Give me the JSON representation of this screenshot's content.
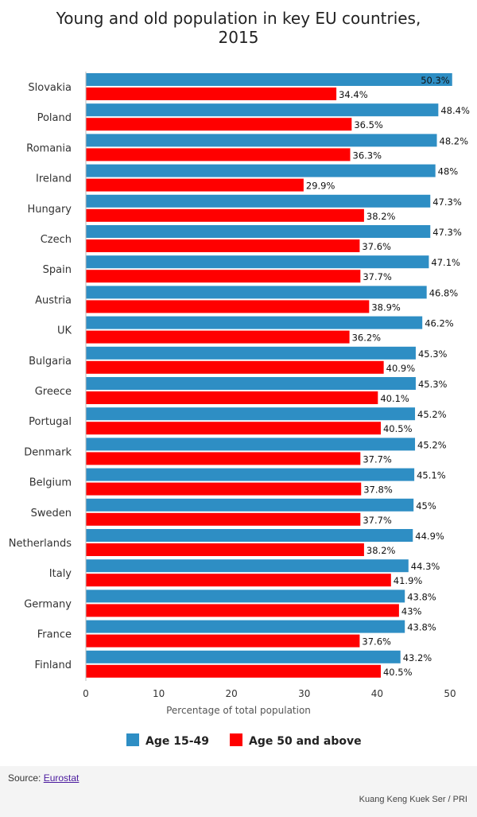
{
  "chart_data": {
    "type": "bar",
    "orientation": "horizontal",
    "title": "Young and old population in key EU countries, 2015",
    "title_lines": [
      "Young and old population in key EU countries,",
      "2015"
    ],
    "xlabel": "Percentage of total population",
    "ylabel": "",
    "xlim": [
      0,
      50
    ],
    "x_ticks": [
      "0",
      "10",
      "20",
      "30",
      "40",
      "50"
    ],
    "grid": false,
    "legend_position": "bottom",
    "categories": [
      "Slovakia",
      "Poland",
      "Romania",
      "Ireland",
      "Hungary",
      "Czech",
      "Spain",
      "Austria",
      "UK",
      "Bulgaria",
      "Greece",
      "Portugal",
      "Denmark",
      "Belgium",
      "Sweden",
      "Netherlands",
      "Italy",
      "Germany",
      "France",
      "Finland"
    ],
    "series": [
      {
        "name": "Age 15-49",
        "color": "#2e8ec4",
        "values": [
          50.3,
          48.4,
          48.2,
          48,
          47.3,
          47.3,
          47.1,
          46.8,
          46.2,
          45.3,
          45.3,
          45.2,
          45.2,
          45.1,
          45,
          44.9,
          44.3,
          43.8,
          43.8,
          43.2
        ],
        "labels": [
          "50.3%",
          "48.4%",
          "48.2%",
          "48%",
          "47.3%",
          "47.3%",
          "47.1%",
          "46.8%",
          "46.2%",
          "45.3%",
          "45.3%",
          "45.2%",
          "45.2%",
          "45.1%",
          "45%",
          "44.9%",
          "44.3%",
          "43.8%",
          "43.8%",
          "43.2%"
        ]
      },
      {
        "name": "Age 50 and above",
        "color": "#ff0000",
        "values": [
          34.4,
          36.5,
          36.3,
          29.9,
          38.2,
          37.6,
          37.7,
          38.9,
          36.2,
          40.9,
          40.1,
          40.5,
          37.7,
          37.8,
          37.7,
          38.2,
          41.9,
          43,
          37.6,
          40.5
        ],
        "labels": [
          "34.4%",
          "36.5%",
          "36.3%",
          "29.9%",
          "38.2%",
          "37.6%",
          "37.7%",
          "38.9%",
          "36.2%",
          "40.9%",
          "40.1%",
          "40.5%",
          "37.7%",
          "37.8%",
          "37.7%",
          "38.2%",
          "41.9%",
          "43%",
          "37.6%",
          "40.5%"
        ]
      }
    ]
  },
  "footer": {
    "source_prefix": "Source: ",
    "source_link": "Eurostat",
    "credit": "Kuang Keng Kuek Ser / PRI"
  }
}
